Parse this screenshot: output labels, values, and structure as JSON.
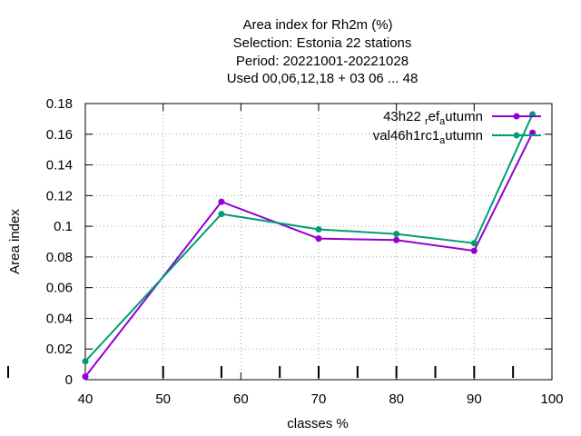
{
  "chart_data": {
    "type": "line",
    "title_lines": [
      "Area index  for Rh2m (%)",
      "Selection: Estonia      22 stations",
      "Period: 20221001-20221028",
      "Used  00,06,12,18  + 03 06 ... 48"
    ],
    "xlabel": "classes %",
    "ylabel": "Area index",
    "xlim": [
      40,
      100
    ],
    "ylim": [
      0,
      0.18
    ],
    "x_ticks": [
      "40",
      "50",
      "60",
      "70",
      "80",
      "90",
      "100"
    ],
    "y_ticks": [
      "0",
      "0.02",
      "0.04",
      "0.06",
      "0.08",
      "0.1",
      "0.12",
      "0.14",
      "0.16",
      "0.18"
    ],
    "grid": true,
    "legend_position": "top-right",
    "series": [
      {
        "name": "43h22_ref_autumn",
        "legend_parts": [
          "43h22 ",
          "r",
          "ef",
          "a",
          "utumn"
        ],
        "color": "#9400d3",
        "x": [
          40,
          57.5,
          70,
          80,
          90,
          97.5
        ],
        "y": [
          0.002,
          0.116,
          0.092,
          0.091,
          0.084,
          0.161
        ]
      },
      {
        "name": "val46h1rc1_autumn",
        "legend_parts": [
          "val46h1rc1",
          "",
          "",
          "a",
          "utumn"
        ],
        "color": "#009e73",
        "x": [
          40,
          57.5,
          70,
          80,
          90,
          97.5
        ],
        "y": [
          0.012,
          0.108,
          0.098,
          0.095,
          0.089,
          0.173
        ]
      }
    ]
  }
}
